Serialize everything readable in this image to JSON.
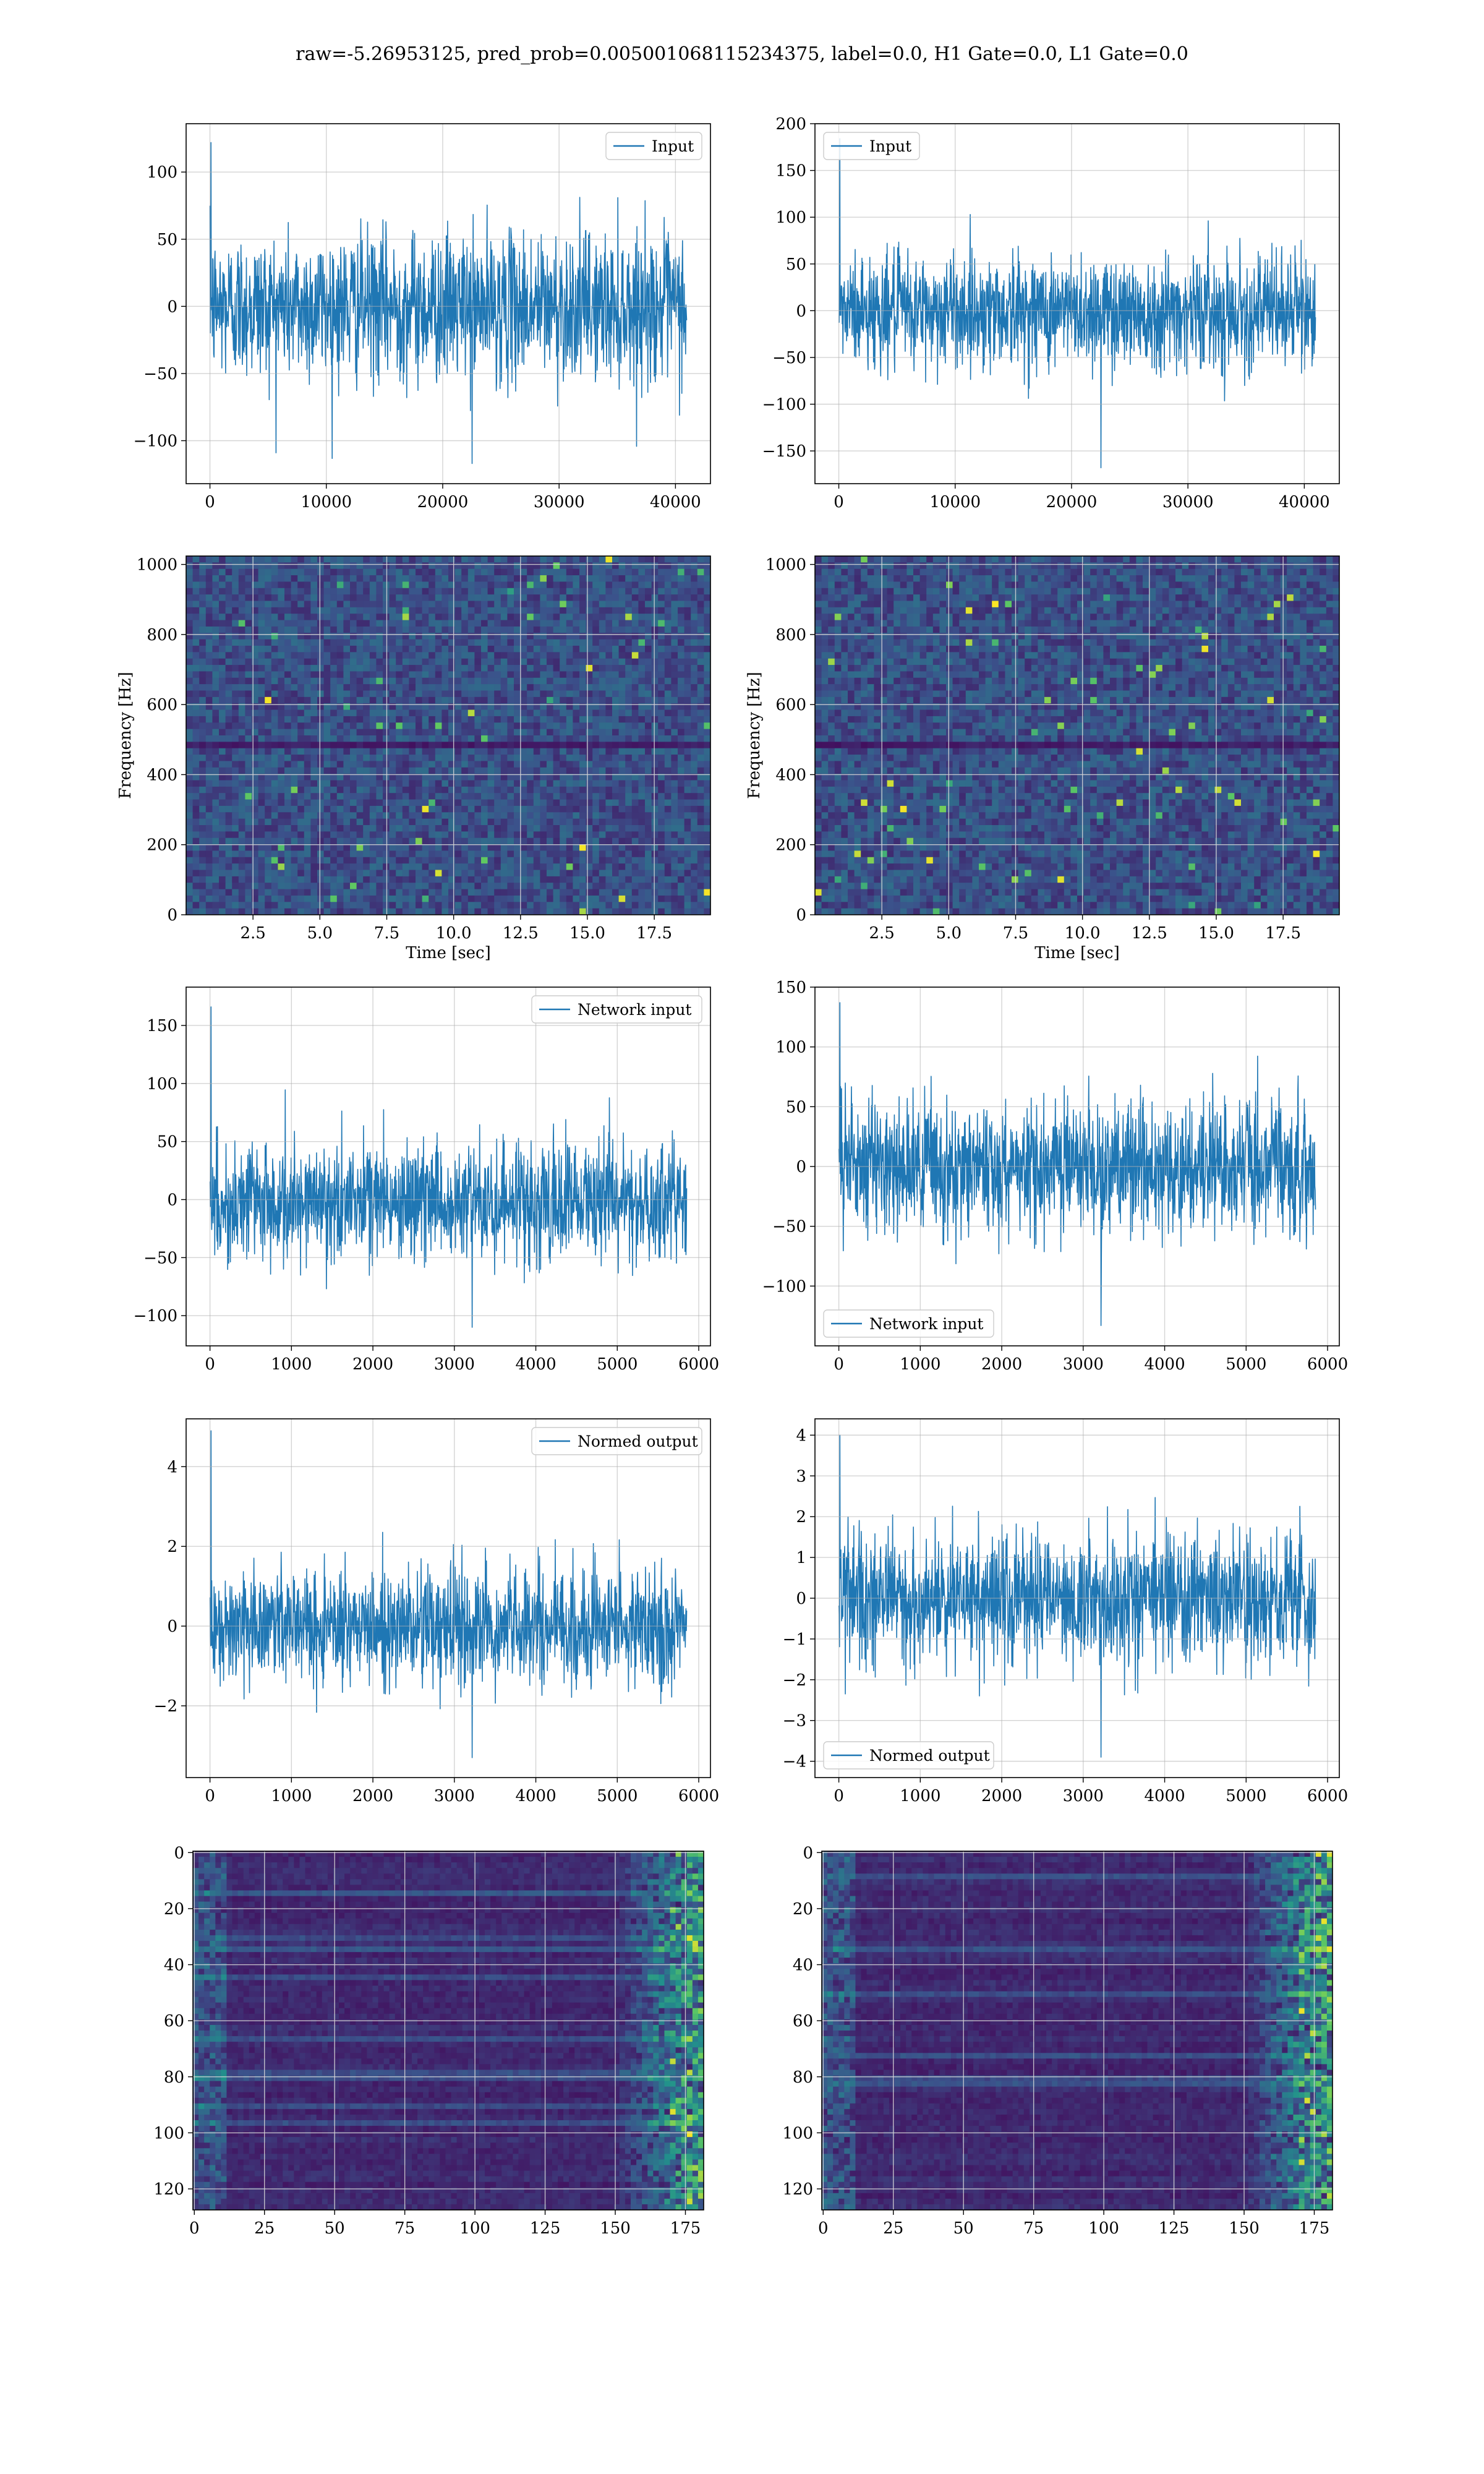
{
  "figure": {
    "title": "raw=-5.26953125, pred_prob=0.005001068115234375, label=0.0, H1 Gate=0.0, L1 Gate=0.0"
  },
  "colors": {
    "line": "#1f77b4",
    "grid": "#b0b0b0",
    "viridis_dark": "#440154",
    "viridis_mid": "#21918c",
    "viridis_bright": "#fde725"
  },
  "chart_data": [
    {
      "type": "line",
      "series": [
        {
          "name": "Input"
        }
      ],
      "x_range": [
        0,
        40960
      ],
      "xlim": [
        -2048,
        43008
      ],
      "ylim": [
        -132,
        136
      ],
      "xticks": [
        0,
        10000,
        20000,
        30000,
        40000
      ],
      "xticklabels": [
        "0",
        "10000",
        "20000",
        "30000",
        "40000"
      ],
      "yticks": [
        -100,
        -50,
        0,
        50,
        100
      ],
      "yticklabels": [
        "−100",
        "−50",
        "0",
        "50",
        "100"
      ],
      "amp": 27,
      "peak_max": 122,
      "peak_min": -117,
      "legend": "top-right",
      "grid": true
    },
    {
      "type": "line",
      "series": [
        {
          "name": "Input"
        }
      ],
      "x_range": [
        0,
        40960
      ],
      "xlim": [
        -2048,
        43008
      ],
      "ylim": [
        -185,
        200
      ],
      "xticks": [
        0,
        10000,
        20000,
        30000,
        40000
      ],
      "xticklabels": [
        "0",
        "10000",
        "20000",
        "30000",
        "40000"
      ],
      "yticks": [
        -150,
        -100,
        -50,
        0,
        50,
        100,
        150,
        200
      ],
      "yticklabels": [
        "−150",
        "−100",
        "−50",
        "0",
        "50",
        "100",
        "150",
        "200"
      ],
      "amp": 30,
      "peak_max": 184,
      "peak_min": -168,
      "legend": "top-left",
      "grid": true
    },
    {
      "type": "heatmap",
      "xlim": [
        0,
        19.6
      ],
      "ylim": [
        0,
        1024
      ],
      "xticks": [
        2.5,
        5,
        7.5,
        10,
        12.5,
        15,
        17.5
      ],
      "xticklabels": [
        "2.5",
        "5.0",
        "7.5",
        "10.0",
        "12.5",
        "15.0",
        "17.5"
      ],
      "yticks": [
        0,
        200,
        400,
        600,
        800,
        1000
      ],
      "yticklabels": [
        "0",
        "200",
        "400",
        "600",
        "800",
        "1000"
      ],
      "xlabel": "Time [sec]",
      "ylabel": "Frequency [Hz]",
      "grid": true
    },
    {
      "type": "heatmap",
      "xlim": [
        0,
        19.6
      ],
      "ylim": [
        0,
        1024
      ],
      "xticks": [
        2.5,
        5,
        7.5,
        10,
        12.5,
        15,
        17.5
      ],
      "xticklabels": [
        "2.5",
        "5.0",
        "7.5",
        "10.0",
        "12.5",
        "15.0",
        "17.5"
      ],
      "yticks": [
        0,
        200,
        400,
        600,
        800,
        1000
      ],
      "yticklabels": [
        "0",
        "200",
        "400",
        "600",
        "800",
        "1000"
      ],
      "xlabel": "Time [sec]",
      "ylabel": "Frequency [Hz]",
      "grid": true
    },
    {
      "type": "line",
      "series": [
        {
          "name": "Network input"
        }
      ],
      "x_range": [
        0,
        5852
      ],
      "xlim": [
        -293,
        6144
      ],
      "ylim": [
        -126,
        183
      ],
      "xticks": [
        0,
        1000,
        2000,
        3000,
        4000,
        5000,
        6000
      ],
      "xticklabels": [
        "0",
        "1000",
        "2000",
        "3000",
        "4000",
        "5000",
        "6000"
      ],
      "yticks": [
        -100,
        -50,
        0,
        50,
        100,
        150
      ],
      "yticklabels": [
        "−100",
        "−50",
        "0",
        "50",
        "100",
        "150"
      ],
      "amp": 25,
      "peak_max": 166,
      "peak_min": -110,
      "legend": "top-right",
      "grid": true
    },
    {
      "type": "line",
      "series": [
        {
          "name": "Network input"
        }
      ],
      "x_range": [
        0,
        5852
      ],
      "xlim": [
        -293,
        6144
      ],
      "ylim": [
        -150,
        150
      ],
      "xticks": [
        0,
        1000,
        2000,
        3000,
        4000,
        5000,
        6000
      ],
      "xticklabels": [
        "0",
        "1000",
        "2000",
        "3000",
        "4000",
        "5000",
        "6000"
      ],
      "yticks": [
        -100,
        -50,
        0,
        50,
        100,
        150
      ],
      "yticklabels": [
        "−100",
        "−50",
        "0",
        "50",
        "100",
        "150"
      ],
      "amp": 27,
      "peak_max": 137,
      "peak_min": -133,
      "legend": "bottom-left",
      "grid": true
    },
    {
      "type": "line",
      "series": [
        {
          "name": "Normed output"
        }
      ],
      "x_range": [
        0,
        5852
      ],
      "xlim": [
        -293,
        6144
      ],
      "ylim": [
        -3.8,
        5.2
      ],
      "xticks": [
        0,
        1000,
        2000,
        3000,
        4000,
        5000,
        6000
      ],
      "xticklabels": [
        "0",
        "1000",
        "2000",
        "3000",
        "4000",
        "5000",
        "6000"
      ],
      "yticks": [
        -2,
        0,
        2,
        4
      ],
      "yticklabels": [
        "−2",
        "0",
        "2",
        "4"
      ],
      "amp": 0.72,
      "peak_max": 4.9,
      "peak_min": -3.3,
      "legend": "top-right",
      "grid": true
    },
    {
      "type": "line",
      "series": [
        {
          "name": "Normed output"
        }
      ],
      "x_range": [
        0,
        5852
      ],
      "xlim": [
        -293,
        6144
      ],
      "ylim": [
        -4.4,
        4.4
      ],
      "xticks": [
        0,
        1000,
        2000,
        3000,
        4000,
        5000,
        6000
      ],
      "xticklabels": [
        "0",
        "1000",
        "2000",
        "3000",
        "4000",
        "5000",
        "6000"
      ],
      "yticks": [
        -4,
        -3,
        -2,
        -1,
        0,
        1,
        2,
        3,
        4
      ],
      "yticklabels": [
        "−4",
        "−3",
        "−2",
        "−1",
        "0",
        "1",
        "2",
        "3",
        "4"
      ],
      "amp": 0.8,
      "peak_max": 4.0,
      "peak_min": -3.9,
      "legend": "bottom-left",
      "grid": true
    },
    {
      "type": "heatmap",
      "xlim": [
        -0.5,
        181.5
      ],
      "ylim": [
        127.5,
        -0.5
      ],
      "xticks": [
        0,
        25,
        50,
        75,
        100,
        125,
        150,
        175
      ],
      "xticklabels": [
        "0",
        "25",
        "50",
        "75",
        "100",
        "125",
        "150",
        "175"
      ],
      "yticks": [
        0,
        20,
        40,
        60,
        80,
        100,
        120
      ],
      "yticklabels": [
        "0",
        "20",
        "40",
        "60",
        "80",
        "100",
        "120"
      ],
      "xlabel": "",
      "ylabel": "",
      "grid": true
    },
    {
      "type": "heatmap",
      "xlim": [
        -0.5,
        181.5
      ],
      "ylim": [
        127.5,
        -0.5
      ],
      "xticks": [
        0,
        25,
        50,
        75,
        100,
        125,
        150,
        175
      ],
      "xticklabels": [
        "0",
        "25",
        "50",
        "75",
        "100",
        "125",
        "150",
        "175"
      ],
      "yticks": [
        0,
        20,
        40,
        60,
        80,
        100,
        120
      ],
      "yticklabels": [
        "0",
        "20",
        "40",
        "60",
        "80",
        "100",
        "120"
      ],
      "xlabel": "",
      "ylabel": "",
      "grid": true
    }
  ]
}
